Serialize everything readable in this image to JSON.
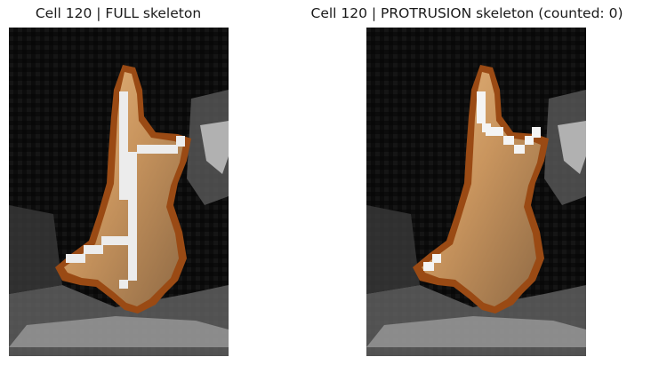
{
  "panels": [
    {
      "title": "Cell 120 | FULL skeleton"
    },
    {
      "title": "Cell 120 | PROTRUSION skeleton (counted: 0)"
    }
  ],
  "colors": {
    "background_dark": "#0b0b0b",
    "cell_fill_light": "#e6b47c",
    "cell_fill_mid": "#a98055",
    "cell_outline": "#9a4a14",
    "skeleton": "#ececec",
    "bright_structure": "#d9d9d9"
  }
}
